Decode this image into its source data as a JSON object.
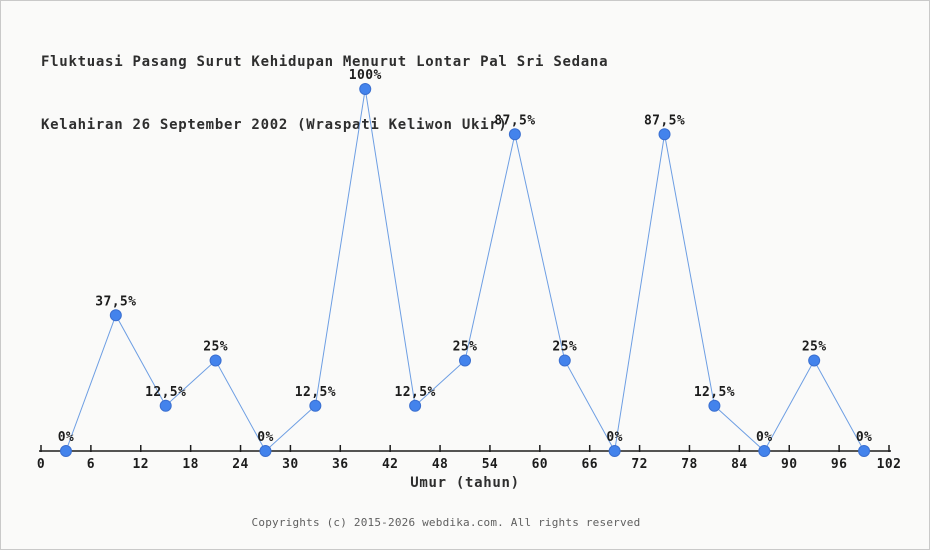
{
  "page": {
    "title_line1": "Fluktuasi Pasang Surut Kehidupan Menurut Lontar Pal Sri Sedana",
    "title_line2": "Kelahiran 26 September 2002 (Wraspati Keliwon Ukir)",
    "footer": "Copyrights (c) 2015-2026 webdika.com. All rights reserved"
  },
  "chart_data": {
    "type": "line",
    "title": "Fluktuasi Pasang Surut Kehidupan Menurut Lontar Pal Sri Sedana",
    "subtitle": "Kelahiran 26 September 2002 (Wraspati Keliwon Ukir)",
    "xlabel": "Umur (tahun)",
    "ylabel": "",
    "x": [
      3,
      9,
      15,
      21,
      27,
      33,
      39,
      45,
      51,
      57,
      63,
      69,
      75,
      81,
      87,
      93,
      99
    ],
    "values": [
      0,
      37.5,
      12.5,
      25,
      0,
      12.5,
      100,
      12.5,
      25,
      87.5,
      25,
      0,
      87.5,
      12.5,
      0,
      25,
      0
    ],
    "point_labels": [
      "0%",
      "37,5%",
      "12,5%",
      "25%",
      "0%",
      "12,5%",
      "100%",
      "12,5%",
      "25%",
      "87,5%",
      "25%",
      "0%",
      "87,5%",
      "12,5%",
      "0%",
      "25%",
      "0%"
    ],
    "x_ticks": [
      0,
      6,
      12,
      18,
      24,
      30,
      36,
      42,
      48,
      54,
      60,
      66,
      72,
      78,
      84,
      90,
      96,
      102
    ],
    "xlim": [
      0,
      102
    ],
    "ylim": [
      0,
      100
    ],
    "grid": false,
    "legend": "none",
    "colors": {
      "line": "#6d9ee3",
      "marker_fill": "#4383ec",
      "marker_border": "#3a6fd0",
      "axis": "#1c1c1c",
      "point_label": "#1c1c1c",
      "title": "#2e2e2e",
      "footer_text": "#5f5f5f",
      "background": "#fafaf9"
    }
  }
}
